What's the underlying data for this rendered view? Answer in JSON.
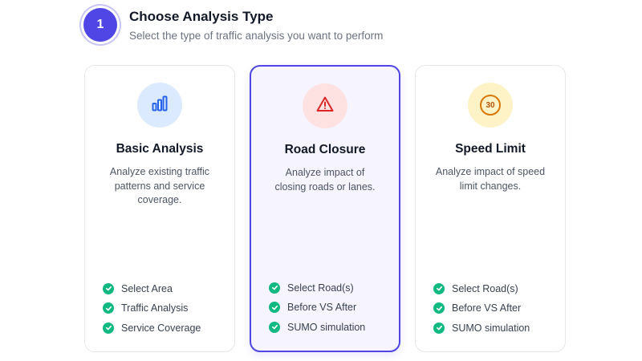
{
  "step": {
    "number": "1",
    "title": "Choose Analysis Type",
    "subtitle": "Select the type of traffic analysis you want to perform"
  },
  "cards": [
    {
      "title": "Basic Analysis",
      "description": "Analyze existing traffic patterns and service coverage.",
      "icon": "bar-chart-icon",
      "icon_color": "#2563eb",
      "icon_bg": "#dbeafe",
      "selected": false,
      "features": [
        "Select Area",
        "Traffic Analysis",
        "Service Coverage"
      ]
    },
    {
      "title": "Road Closure",
      "description": "Analyze impact of closing roads or lanes.",
      "icon": "warning-triangle-icon",
      "icon_color": "#dc2626",
      "icon_bg": "#fee2e2",
      "selected": true,
      "features": [
        "Select Road(s)",
        "Before VS After",
        "SUMO simulation"
      ]
    },
    {
      "title": "Speed Limit",
      "description": "Analyze impact of speed limit changes.",
      "icon": "speed-limit-sign-icon",
      "icon_text": "30",
      "icon_color": "#d97706",
      "icon_bg": "#fef3c7",
      "selected": false,
      "features": [
        "Select Road(s)",
        "Before VS After",
        "SUMO simulation"
      ]
    }
  ],
  "colors": {
    "accent": "#4f46e5",
    "check": "#10b981"
  }
}
